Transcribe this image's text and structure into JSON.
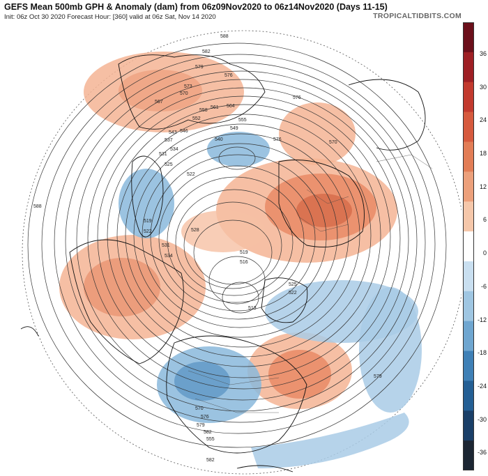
{
  "header": {
    "title": "GEFS Mean 500mb GPH & Anomaly (dam) from 06z09Nov2020 to 06z14Nov2020 (Days 11-15)",
    "subtitle": "Init: 06z Oct 30 2020   Forecast Hour: [360]   valid at 06z Sat, Nov 14 2020",
    "brand": "TROPICALTIDBITS.COM"
  },
  "colorbar": {
    "ticks": [
      "36",
      "30",
      "24",
      "18",
      "12",
      "6",
      "0",
      "-6",
      "-12",
      "-18",
      "-24",
      "-30",
      "-36"
    ],
    "colors_positive": [
      "#6b0f1a",
      "#9e1f24",
      "#c23a2e",
      "#d65a3e",
      "#e27d56",
      "#eca07b",
      "#f5c7aa"
    ],
    "colors_negative": [
      "#c9dff0",
      "#9fc6e2",
      "#6fa6d0",
      "#3f80b6",
      "#245f94",
      "#1a3f68",
      "#1c2633"
    ]
  },
  "contour_labels": [
    "588",
    "582",
    "579",
    "576",
    "573",
    "570",
    "567",
    "564",
    "561",
    "558",
    "555",
    "552",
    "549",
    "546",
    "543",
    "540",
    "537",
    "534",
    "531",
    "528",
    "525",
    "522",
    "519",
    "516",
    "513"
  ],
  "map": {
    "positive_anomaly_color": "#f0a07c",
    "negative_anomaly_color": "#8ab8dc"
  }
}
